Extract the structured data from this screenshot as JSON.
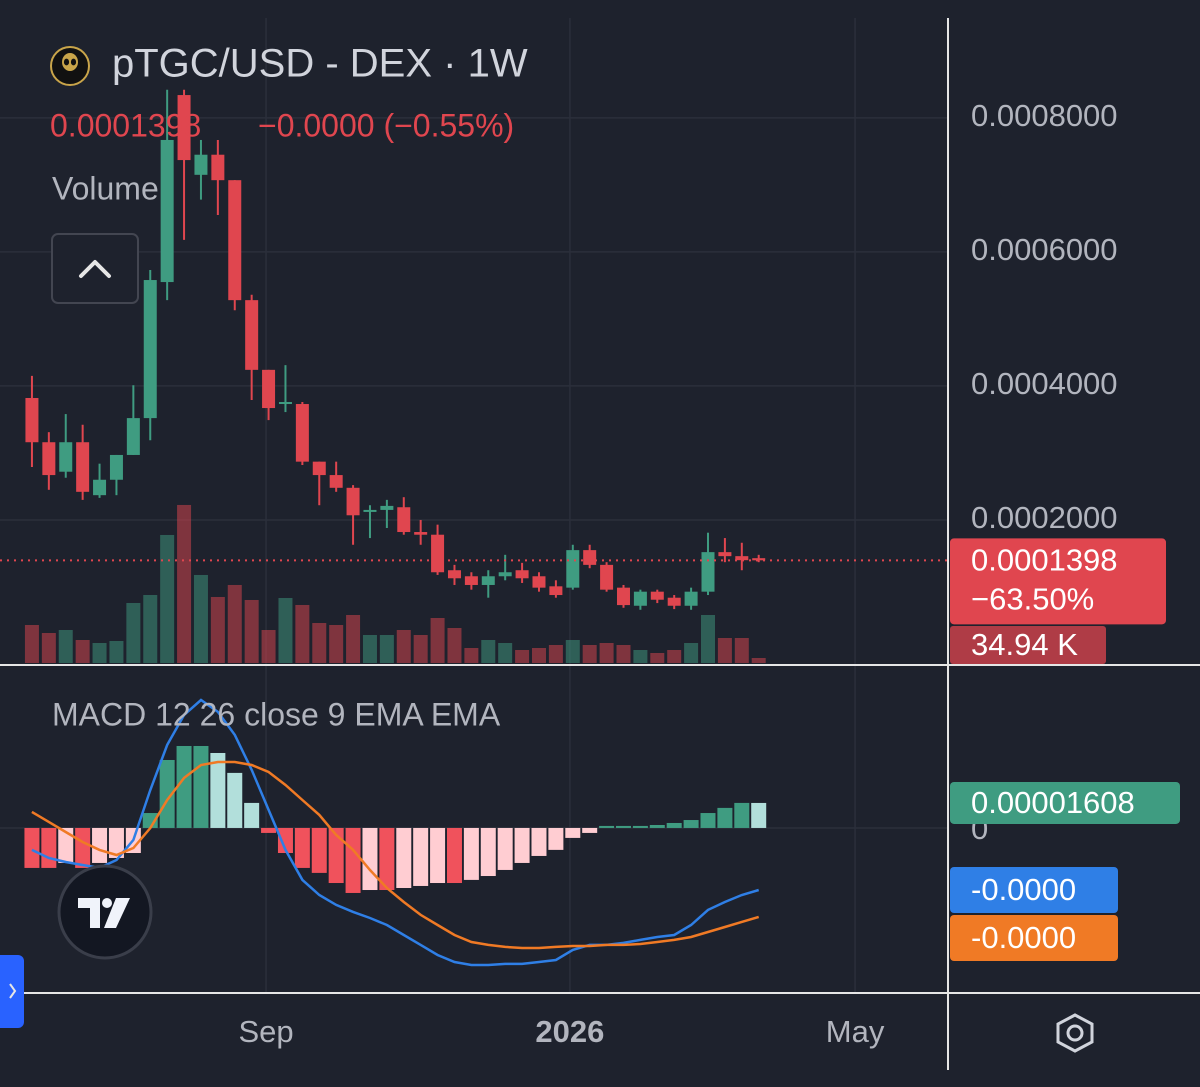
{
  "header": {
    "symbol": "pTGC/USD - DEX · 1W",
    "quote": "0.0001398",
    "change": "−0.0000 (−0.55%)",
    "volume_title": "Volume"
  },
  "chart_data": [
    {
      "type": "candlestick",
      "open": [
        0.000382,
        0.000316,
        0.000272,
        0.000316,
        0.000237,
        0.00026,
        0.000297,
        0.000352,
        0.000555,
        0.000834,
        0.000715,
        0.000745,
        0.000707,
        0.000528,
        0.000424,
        0.000373,
        0.000373,
        0.000287,
        0.000267,
        0.000248,
        0.000212,
        0.000215,
        0.000219,
        0.000182,
        0.000178,
        0.000125,
        0.000116,
        0.000103,
        0.000116,
        0.000125,
        0.000116,
        0.000101,
        9.9e-05,
        0.000155,
        0.000133,
        9.9e-05,
        7.2e-05,
        9.3e-05,
        8.4e-05,
        7.2e-05,
        9.3e-05,
        0.000152,
        0.000146,
        0.000143
      ],
      "high": [
        0.000415,
        0.000331,
        0.000358,
        0.000342,
        0.000284,
        0.000297,
        0.000401,
        0.000573,
        0.000842,
        0.000842,
        0.000767,
        0.000767,
        0.000707,
        0.000536,
        0.000424,
        0.000431,
        0.000376,
        0.000287,
        0.000287,
        0.000252,
        0.000222,
        0.00023,
        0.000234,
        0.0002,
        0.000193,
        0.000133,
        0.000122,
        0.000125,
        0.000148,
        0.000136,
        0.000122,
        0.00011,
        0.000163,
        0.000163,
        0.000137,
        0.000103,
        9.6e-05,
        9.6e-05,
        8.8e-05,
        9.9e-05,
        0.000181,
        0.000173,
        0.000166,
        0.000148
      ],
      "low": [
        0.000279,
        0.000245,
        0.000263,
        0.00023,
        0.000233,
        0.000237,
        0.000297,
        0.000319,
        0.000528,
        0.000618,
        0.000678,
        0.000655,
        0.000513,
        0.000379,
        0.000349,
        0.000361,
        0.000282,
        0.000222,
        0.000242,
        0.000163,
        0.000173,
        0.000188,
        0.000178,
        0.000163,
        0.000118,
        0.000103,
        9.6e-05,
        8.4e-05,
        0.00011,
        0.000106,
        9.3e-05,
        8.4e-05,
        9.6e-05,
        0.000128,
        9.3e-05,
        6.9e-05,
        6.6e-05,
        7.6e-05,
        6.7e-05,
        6.6e-05,
        8.8e-05,
        0.000137,
        0.000125,
        0.000137
      ],
      "close": [
        0.000316,
        0.000267,
        0.000316,
        0.000242,
        0.00026,
        0.000297,
        0.000352,
        0.000558,
        0.000767,
        0.000737,
        0.000745,
        0.000707,
        0.000528,
        0.000424,
        0.000367,
        0.000376,
        0.000287,
        0.000267,
        0.000248,
        0.000207,
        0.000215,
        0.000221,
        0.000182,
        0.000178,
        0.000122,
        0.000113,
        0.000103,
        0.000116,
        0.000122,
        0.000113,
        9.9e-05,
        8.8e-05,
        0.000155,
        0.000133,
        9.6e-05,
        7.3e-05,
        9.3e-05,
        8.1e-05,
        7.2e-05,
        9.3e-05,
        0.000152,
        0.000146,
        0.00014,
        0.0001398
      ],
      "volume": [
        266000,
        210000,
        231000,
        161000,
        140000,
        154000,
        420000,
        476000,
        896000,
        1106000,
        616000,
        462000,
        546000,
        441000,
        231000,
        455000,
        406000,
        280000,
        266000,
        336000,
        196000,
        196000,
        231000,
        196000,
        315000,
        245000,
        105000,
        161000,
        140000,
        91000,
        105000,
        126000,
        161000,
        126000,
        140000,
        126000,
        91000,
        70000,
        91000,
        140000,
        336000,
        175000,
        175000,
        34940
      ],
      "volume_value_labels": [
        null,
        null,
        null,
        null,
        null,
        null,
        null,
        null,
        null,
        null,
        null,
        null,
        null,
        null,
        null,
        null,
        null,
        null,
        null,
        null,
        null,
        null,
        null,
        null,
        null,
        null,
        null,
        null,
        null,
        null,
        null,
        null,
        null,
        null,
        null,
        null,
        null,
        null,
        null,
        null,
        null,
        null,
        null,
        "34.94 K"
      ],
      "change_label": "−63.50%",
      "up_color": "#3f9c81",
      "down_color": "#e0464f",
      "xlim": [
        -1.89,
        54.2
      ],
      "ylim": [
        -1.64e-05,
        0.000946
      ],
      "volume_ylim": [
        0,
        4500000
      ],
      "yticks": [
        {
          "value": 0.0002,
          "label": "0.0002000"
        },
        {
          "value": 0.0004,
          "label": "0.0004000"
        },
        {
          "value": 0.0006,
          "label": "0.0006000"
        },
        {
          "value": 0.0008,
          "label": "0.0008000"
        }
      ],
      "xticks": [
        {
          "value": 13.85,
          "label": "Sep"
        },
        {
          "value": 31.83,
          "label": "2026",
          "bold": true
        },
        {
          "value": 48.7,
          "label": "May"
        }
      ],
      "grid": true
    },
    {
      "type": "macd",
      "title": "MACD 12 26 close 9 EMA EMA",
      "ylim": [
        -0.0001074,
        8.87e-05
      ],
      "yticks": [
        0
      ],
      "grid": true,
      "histogram": {
        "values": [
          -2.57e-05,
          -2.57e-05,
          -2.25e-05,
          -2.57e-05,
          -2.25e-05,
          -1.93e-05,
          -1.61e-05,
          9.6e-06,
          4.37e-05,
          5.27e-05,
          5.27e-05,
          4.82e-05,
          3.54e-05,
          1.61e-05,
          -3.2e-06,
          -1.61e-05,
          -2.57e-05,
          -2.89e-05,
          -3.54e-05,
          -4.18e-05,
          -3.99e-05,
          -3.99e-05,
          -3.86e-05,
          -3.73e-05,
          -3.54e-05,
          -3.54e-05,
          -3.34e-05,
          -3.09e-05,
          -2.7e-05,
          -2.25e-05,
          -1.8e-05,
          -1.41e-05,
          -6.4e-06,
          -3.2e-06,
          1.3e-06,
          1.3e-06,
          1.3e-06,
          1.9e-06,
          3.2e-06,
          5.1e-06,
          9.6e-06,
          1.29e-05,
          1.61e-05,
          1.608e-05
        ],
        "colors": {
          "grow_above": "#3f9c81",
          "fall_above": "#b2dfdb",
          "grow_below": "#ffcdd2",
          "fall_below": "#f0525c"
        }
      },
      "series": [
        {
          "color": "#2f7fe6",
          "values": [
            -1.41e-05,
            -1.93e-05,
            -2.19e-05,
            -2.38e-05,
            -2.57e-05,
            -2.06e-05,
            -7.7e-06,
            2.44e-05,
            5.34e-05,
            7.27e-05,
            8.23e-05,
            7.46e-05,
            5.98e-05,
            3.73e-05,
            1.16e-05,
            -1.41e-05,
            -3.34e-05,
            -4.31e-05,
            -4.95e-05,
            -5.4e-05,
            -5.79e-05,
            -6.24e-05,
            -6.88e-05,
            -7.52e-05,
            -8.17e-05,
            -8.62e-05,
            -8.81e-05,
            -8.81e-05,
            -8.74e-05,
            -8.74e-05,
            -8.62e-05,
            -8.49e-05,
            -7.84e-05,
            -7.52e-05,
            -7.52e-05,
            -7.39e-05,
            -7.2e-05,
            -7.01e-05,
            -6.88e-05,
            -6.24e-05,
            -5.27e-05,
            -4.76e-05,
            -4.31e-05,
            -3.99e-05
          ],
          "value_labels": [
            null,
            null,
            null,
            null,
            null,
            null,
            null,
            null,
            null,
            null,
            null,
            null,
            null,
            null,
            null,
            null,
            null,
            null,
            null,
            null,
            null,
            null,
            null,
            null,
            null,
            null,
            null,
            null,
            null,
            null,
            null,
            null,
            null,
            null,
            null,
            null,
            null,
            null,
            null,
            null,
            null,
            null,
            null,
            "-0.0000"
          ]
        },
        {
          "color": "#f07a25",
          "values": [
            1.03e-05,
            3.9e-06,
            -2.6e-06,
            -9e-06,
            -1.41e-05,
            -1.74e-05,
            -1.29e-05,
            0,
            1.8e-05,
            3.22e-05,
            4.05e-05,
            4.24e-05,
            4.24e-05,
            4.05e-05,
            3.6e-05,
            2.76e-05,
            1.8e-05,
            8.4e-06,
            -4.5e-06,
            -1.41e-05,
            -2.7e-05,
            -3.86e-05,
            -4.76e-05,
            -5.59e-05,
            -6.24e-05,
            -6.88e-05,
            -7.33e-05,
            -7.52e-05,
            -7.65e-05,
            -7.72e-05,
            -7.72e-05,
            -7.65e-05,
            -7.59e-05,
            -7.59e-05,
            -7.52e-05,
            -7.52e-05,
            -7.46e-05,
            -7.33e-05,
            -7.2e-05,
            -7.01e-05,
            -6.69e-05,
            -6.37e-05,
            -6.04e-05,
            -5.72e-05
          ],
          "value_labels": [
            null,
            null,
            null,
            null,
            null,
            null,
            null,
            null,
            null,
            null,
            null,
            null,
            null,
            null,
            null,
            null,
            null,
            null,
            null,
            null,
            null,
            null,
            null,
            null,
            null,
            null,
            null,
            null,
            null,
            null,
            null,
            null,
            null,
            null,
            null,
            null,
            null,
            null,
            null,
            null,
            null,
            null,
            null,
            "-0.0000"
          ]
        }
      ]
    }
  ]
}
